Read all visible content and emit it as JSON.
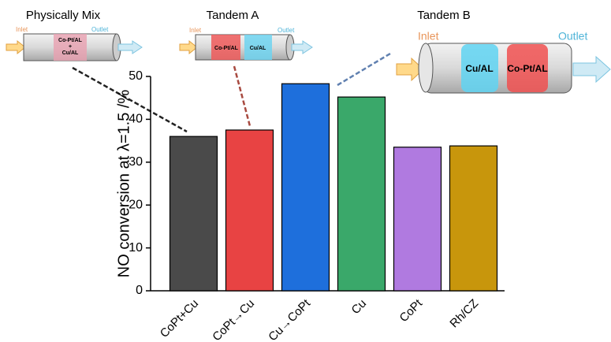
{
  "chart_data": {
    "type": "bar",
    "y_label": "NO conversion at λ=1.5 /%",
    "categories": [
      "CoPt+Cu",
      "CoPt→Cu",
      "Cu→CoPt",
      "Cu",
      "CoPt",
      "Rh/CZ"
    ],
    "values": [
      36.0,
      37.5,
      48.3,
      45.2,
      33.5,
      33.8
    ],
    "colors": [
      "#4a4a4a",
      "#e84343",
      "#1e6fdc",
      "#3aa86a",
      "#b07ae0",
      "#c8960c"
    ],
    "ylim": [
      0,
      50
    ],
    "yticks": [
      0,
      10,
      20,
      30,
      40,
      50
    ],
    "insets": [
      {
        "title": "Physically Mix",
        "inlet": "Inlet",
        "outlet": "Outlet",
        "beds": [
          "Co-Pt/AL",
          "+",
          "Cu/AL"
        ]
      },
      {
        "title": "Tandem A",
        "inlet": "Inlet",
        "outlet": "Outlet",
        "beds": [
          "Co-Pt/AL",
          "Cu/AL"
        ]
      },
      {
        "title": "Tandem B",
        "inlet": "Inlet",
        "outlet": "Outlet",
        "beds": [
          "Cu/AL",
          "Co-Pt/AL"
        ]
      }
    ]
  }
}
